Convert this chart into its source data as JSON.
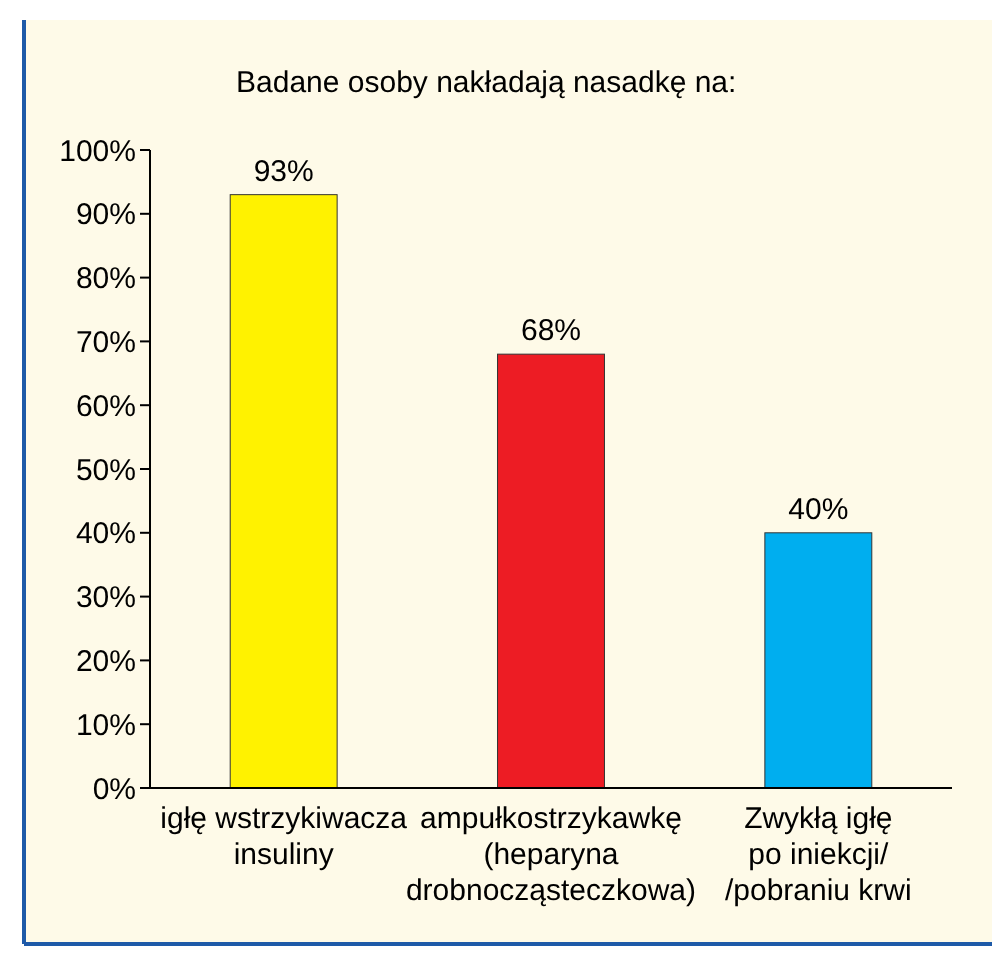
{
  "chart_data": {
    "type": "bar",
    "title": "Badane osoby nakładają nasadkę na:",
    "categories": [
      "igłę wstrzykiwacza\ninsuliny",
      "ampułkostrzykawkę\n(heparyna\ndrobnocząsteczkowa)",
      "Zwykłą igłę\npo iniekcji/\n/pobraniu krwi"
    ],
    "values": [
      93,
      68,
      40
    ],
    "colors": [
      "#fff200",
      "#ed1c24",
      "#00aeef"
    ],
    "value_labels": [
      "93%",
      "68%",
      "40%"
    ],
    "ylim": [
      0,
      100
    ],
    "yticks": [
      {
        "value": 0,
        "label": "0%"
      },
      {
        "value": 10,
        "label": "10%"
      },
      {
        "value": 20,
        "label": "20%"
      },
      {
        "value": 30,
        "label": "30%"
      },
      {
        "value": 40,
        "label": "40%"
      },
      {
        "value": 50,
        "label": "50%"
      },
      {
        "value": 60,
        "label": "60%"
      },
      {
        "value": 70,
        "label": "70%"
      },
      {
        "value": 80,
        "label": "80%"
      },
      {
        "value": 90,
        "label": "90%"
      },
      {
        "value": 100,
        "label": "100%"
      }
    ],
    "grid": false
  }
}
